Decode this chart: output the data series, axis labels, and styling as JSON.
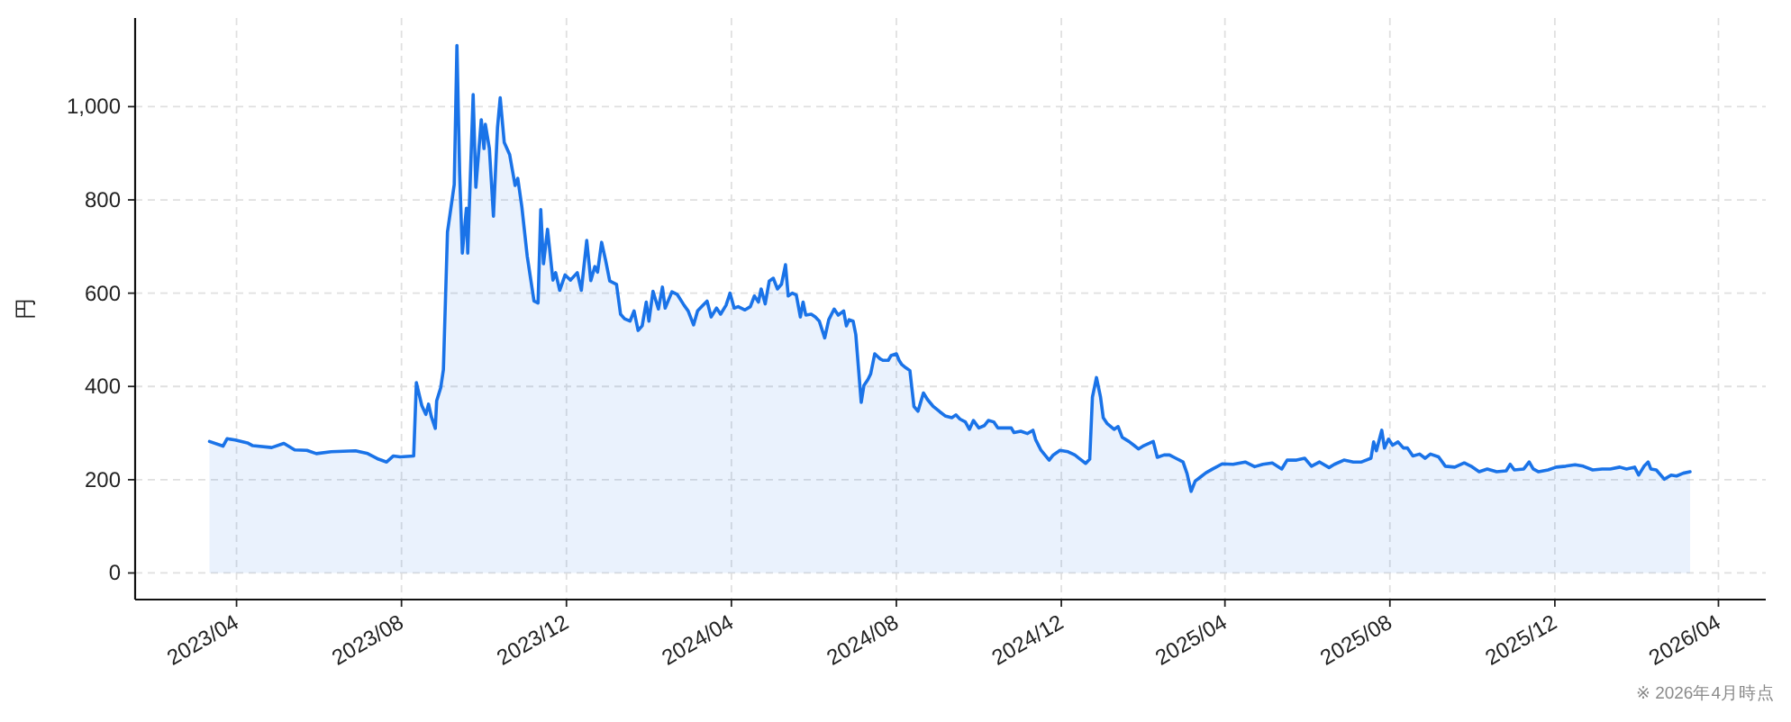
{
  "chart_data": {
    "type": "area",
    "ylabel": "円",
    "annotations": [
      "※ 2026年4月時点"
    ],
    "grid": true,
    "xlim": [
      "2023-01-16",
      "2026-05-06"
    ],
    "ylim": [
      -57,
      1190
    ],
    "xticks": [
      {
        "value": "2023-04-01",
        "label": "2023/04"
      },
      {
        "value": "2023-08-01",
        "label": "2023/08"
      },
      {
        "value": "2023-12-01",
        "label": "2023/12"
      },
      {
        "value": "2024-04-01",
        "label": "2024/04"
      },
      {
        "value": "2024-08-01",
        "label": "2024/08"
      },
      {
        "value": "2024-12-01",
        "label": "2024/12"
      },
      {
        "value": "2025-04-01",
        "label": "2025/04"
      },
      {
        "value": "2025-08-01",
        "label": "2025/08"
      },
      {
        "value": "2025-12-01",
        "label": "2025/12"
      },
      {
        "value": "2026-04-01",
        "label": "2026/04"
      }
    ],
    "yticks": [
      0,
      200,
      400,
      600,
      800,
      {
        "value": 1000,
        "label": "1,000"
      }
    ],
    "x": [
      "2023-03-12",
      "2023-03-22",
      "2023-03-25",
      "2023-03-31",
      "2023-04-09",
      "2023-04-13",
      "2023-04-27",
      "2023-05-06",
      "2023-05-14",
      "2023-05-23",
      "2023-05-30",
      "2023-06-10",
      "2023-06-28",
      "2023-07-07",
      "2023-07-15",
      "2023-07-21",
      "2023-07-26",
      "2023-07-31",
      "2023-08-10",
      "2023-08-12",
      "2023-08-16",
      "2023-08-19",
      "2023-08-21",
      "2023-08-23",
      "2023-08-26",
      "2023-08-27",
      "2023-08-30",
      "2023-09-01",
      "2023-09-04",
      "2023-09-09",
      "2023-09-11",
      "2023-09-13",
      "2023-09-15",
      "2023-09-18",
      "2023-09-19",
      "2023-09-23",
      "2023-09-25",
      "2023-09-29",
      "2023-10-01",
      "2023-10-02",
      "2023-10-05",
      "2023-10-08",
      "2023-10-11",
      "2023-10-13",
      "2023-10-16",
      "2023-10-20",
      "2023-10-24",
      "2023-10-26",
      "2023-10-29",
      "2023-11-02",
      "2023-11-07",
      "2023-11-10",
      "2023-11-12",
      "2023-11-14",
      "2023-11-17",
      "2023-11-21",
      "2023-11-23",
      "2023-11-26",
      "2023-11-30",
      "2023-12-04",
      "2023-12-09",
      "2023-12-12",
      "2023-12-16",
      "2023-12-19",
      "2023-12-22",
      "2023-12-24",
      "2023-12-27",
      "2023-12-30",
      "2024-01-02",
      "2024-01-07",
      "2024-01-10",
      "2024-01-13",
      "2024-01-17",
      "2024-01-20",
      "2024-01-23",
      "2024-01-26",
      "2024-01-29",
      "2024-01-31",
      "2024-02-03",
      "2024-02-07",
      "2024-02-10",
      "2024-02-12",
      "2024-02-17",
      "2024-02-21",
      "2024-02-26",
      "2024-02-29",
      "2024-03-04",
      "2024-03-07",
      "2024-03-11",
      "2024-03-14",
      "2024-03-17",
      "2024-03-21",
      "2024-03-24",
      "2024-03-28",
      "2024-03-31",
      "2024-04-03",
      "2024-04-06",
      "2024-04-11",
      "2024-04-15",
      "2024-04-18",
      "2024-04-21",
      "2024-04-23",
      "2024-04-26",
      "2024-04-29",
      "2024-05-02",
      "2024-05-05",
      "2024-05-08",
      "2024-05-11",
      "2024-05-13",
      "2024-05-16",
      "2024-05-19",
      "2024-05-22",
      "2024-05-24",
      "2024-05-26",
      "2024-05-30",
      "2024-06-02",
      "2024-06-05",
      "2024-06-09",
      "2024-06-12",
      "2024-06-16",
      "2024-06-19",
      "2024-06-23",
      "2024-06-25",
      "2024-06-27",
      "2024-06-30",
      "2024-07-02",
      "2024-07-06",
      "2024-07-08",
      "2024-07-11",
      "2024-07-13",
      "2024-07-16",
      "2024-07-20",
      "2024-07-22",
      "2024-07-26",
      "2024-07-28",
      "2024-08-01",
      "2024-08-03",
      "2024-08-05",
      "2024-08-08",
      "2024-08-11",
      "2024-08-14",
      "2024-08-17",
      "2024-08-21",
      "2024-08-24",
      "2024-08-28",
      "2024-09-02",
      "2024-09-06",
      "2024-09-11",
      "2024-09-14",
      "2024-09-17",
      "2024-09-21",
      "2024-09-24",
      "2024-09-27",
      "2024-10-01",
      "2024-10-05",
      "2024-10-08",
      "2024-10-12",
      "2024-10-15",
      "2024-10-25",
      "2024-10-27",
      "2024-11-01",
      "2024-11-06",
      "2024-11-10",
      "2024-11-12",
      "2024-11-16",
      "2024-11-22",
      "2024-11-25",
      "2024-11-30",
      "2024-12-06",
      "2024-12-11",
      "2024-12-15",
      "2024-12-19",
      "2024-12-22",
      "2024-12-24",
      "2024-12-27",
      "2024-12-30",
      "2025-01-01",
      "2025-01-04",
      "2025-01-09",
      "2025-01-12",
      "2025-01-15",
      "2025-01-20",
      "2025-01-24",
      "2025-01-27",
      "2025-01-31",
      "2025-02-04",
      "2025-02-07",
      "2025-02-10",
      "2025-02-15",
      "2025-02-19",
      "2025-02-23",
      "2025-03-01",
      "2025-03-04",
      "2025-03-07",
      "2025-03-10",
      "2025-03-14",
      "2025-03-18",
      "2025-03-23",
      "2025-03-30",
      "2025-04-07",
      "2025-04-16",
      "2025-04-23",
      "2025-04-29",
      "2025-05-06",
      "2025-05-13",
      "2025-05-17",
      "2025-05-24",
      "2025-05-30",
      "2025-06-04",
      "2025-06-10",
      "2025-06-17",
      "2025-06-21",
      "2025-06-28",
      "2025-07-05",
      "2025-07-11",
      "2025-07-18",
      "2025-07-20",
      "2025-07-22",
      "2025-07-26",
      "2025-07-28",
      "2025-07-31",
      "2025-08-03",
      "2025-08-07",
      "2025-08-11",
      "2025-08-14",
      "2025-08-18",
      "2025-08-23",
      "2025-08-27",
      "2025-08-31",
      "2025-09-06",
      "2025-09-11",
      "2025-09-18",
      "2025-09-25",
      "2025-09-30",
      "2025-10-06",
      "2025-10-12",
      "2025-10-19",
      "2025-10-26",
      "2025-10-29",
      "2025-11-01",
      "2025-11-08",
      "2025-11-12",
      "2025-11-15",
      "2025-11-19",
      "2025-11-26",
      "2025-12-02",
      "2025-12-09",
      "2025-12-16",
      "2025-12-22",
      "2025-12-29",
      "2026-01-05",
      "2026-01-11",
      "2026-01-18",
      "2026-01-23",
      "2026-01-29",
      "2026-02-01",
      "2026-02-05",
      "2026-02-08",
      "2026-02-10",
      "2026-02-14",
      "2026-02-20",
      "2026-02-25",
      "2026-03-01",
      "2026-03-06",
      "2026-03-11"
    ],
    "series": [
      {
        "color": "#1a73e8",
        "values": [
          282,
          272,
          288,
          285,
          279,
          273,
          269,
          278,
          264,
          263,
          256,
          260,
          262,
          256,
          244,
          238,
          251,
          249,
          251,
          408,
          359,
          340,
          362,
          336,
          310,
          369,
          397,
          436,
          731,
          833,
          1131,
          859,
          686,
          782,
          686,
          1026,
          827,
          972,
          910,
          962,
          910,
          765,
          955,
          1019,
          923,
          897,
          831,
          846,
          785,
          679,
          583,
          579,
          779,
          663,
          737,
          628,
          644,
          606,
          639,
          628,
          644,
          606,
          713,
          627,
          657,
          645,
          709,
          670,
          626,
          619,
          555,
          545,
          540,
          562,
          520,
          530,
          581,
          540,
          604,
          566,
          613,
          568,
          603,
          597,
          574,
          562,
          532,
          562,
          574,
          583,
          549,
          568,
          555,
          574,
          600,
          568,
          571,
          564,
          571,
          594,
          581,
          609,
          577,
          626,
          632,
          609,
          619,
          661,
          594,
          600,
          596,
          549,
          581,
          553,
          555,
          549,
          540,
          504,
          543,
          566,
          553,
          562,
          530,
          543,
          540,
          511,
          366,
          402,
          415,
          427,
          470,
          459,
          456,
          456,
          466,
          470,
          456,
          447,
          440,
          434,
          357,
          347,
          386,
          372,
          358,
          346,
          337,
          333,
          339,
          330,
          324,
          308,
          327,
          311,
          316,
          327,
          324,
          311,
          311,
          301,
          304,
          299,
          306,
          286,
          263,
          242,
          253,
          263,
          260,
          253,
          244,
          235,
          244,
          377,
          419,
          377,
          333,
          320,
          308,
          314,
          291,
          282,
          273,
          266,
          273,
          278,
          282,
          248,
          253,
          253,
          247,
          238,
          213,
          175,
          197,
          206,
          215,
          223,
          234,
          233,
          238,
          228,
          233,
          236,
          223,
          242,
          242,
          246,
          229,
          238,
          226,
          233,
          242,
          238,
          238,
          246,
          281,
          262,
          306,
          268,
          287,
          274,
          281,
          268,
          268,
          251,
          255,
          246,
          255,
          249,
          229,
          227,
          236,
          229,
          217,
          223,
          217,
          219,
          233,
          221,
          223,
          238,
          223,
          217,
          221,
          227,
          229,
          232,
          229,
          221,
          223,
          223,
          227,
          223,
          227,
          210,
          229,
          238,
          223,
          221,
          201,
          210,
          208,
          214,
          217
        ]
      }
    ]
  }
}
